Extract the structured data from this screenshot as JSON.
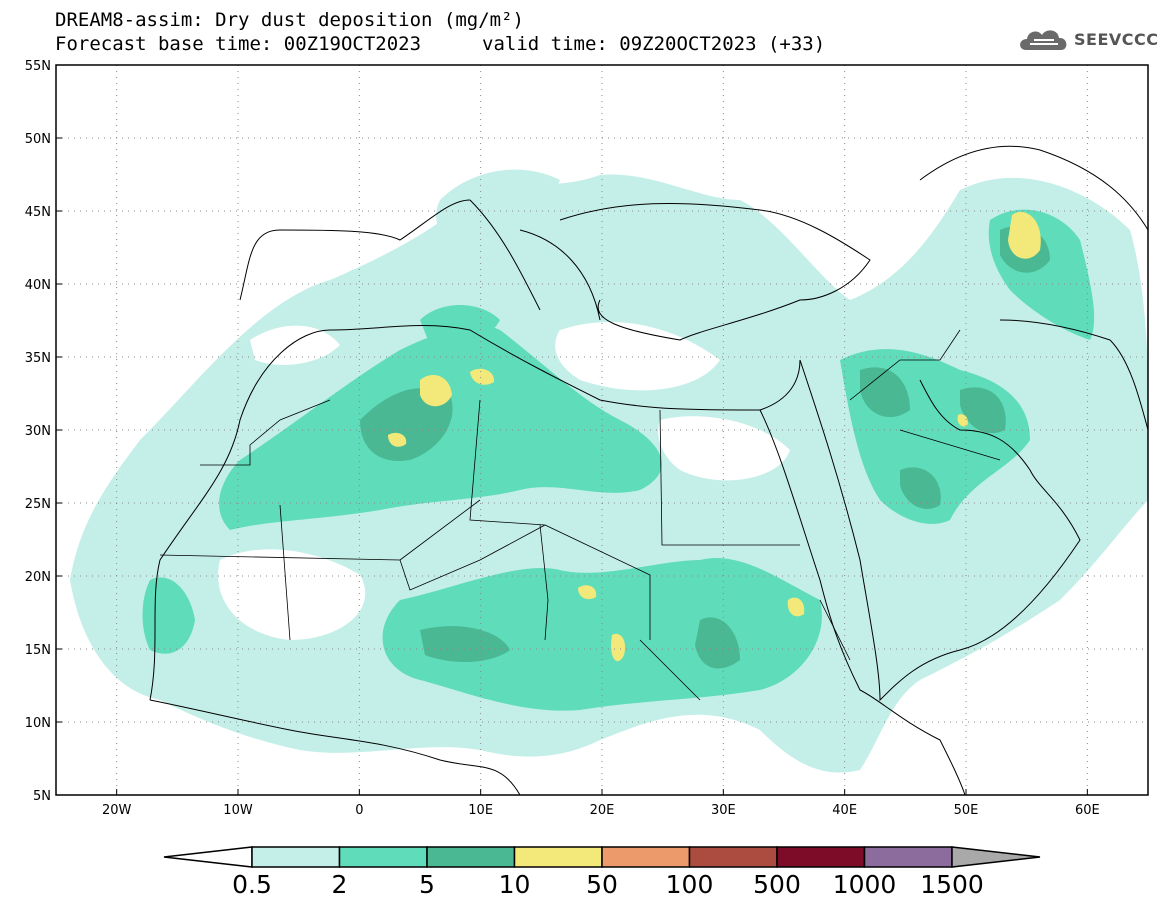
{
  "title_line1": "DREAM8-assim: Dry dust deposition (mg/m²)",
  "title_line2_left": "Forecast base time: 00Z19OCT2023",
  "title_line2_right": "valid time: 09Z20OCT2023 (+33)",
  "logo": {
    "text": "SEEVCCC",
    "icon": "cloud-icon"
  },
  "map": {
    "lat_labels": [
      "55N",
      "50N",
      "45N",
      "40N",
      "35N",
      "30N",
      "25N",
      "20N",
      "15N",
      "10N",
      "5N"
    ],
    "lon_labels": [
      "20W",
      "10W",
      "0",
      "10E",
      "20E",
      "30E",
      "40E",
      "50E",
      "60E"
    ],
    "lat_range": [
      5,
      55
    ],
    "lon_range": [
      -25,
      65
    ],
    "grid": "dotted"
  },
  "colorbar": {
    "levels": [
      "0.5",
      "2",
      "5",
      "10",
      "50",
      "100",
      "500",
      "1000",
      "1500"
    ],
    "colors": [
      "#c4efe8",
      "#5fdcba",
      "#4ab892",
      "#f3e97a",
      "#ec9a6c",
      "#ac4c40",
      "#7c0c28",
      "#8c6c9c"
    ],
    "under_color": "#ffffff",
    "over_color": "#a9a9a9"
  }
}
